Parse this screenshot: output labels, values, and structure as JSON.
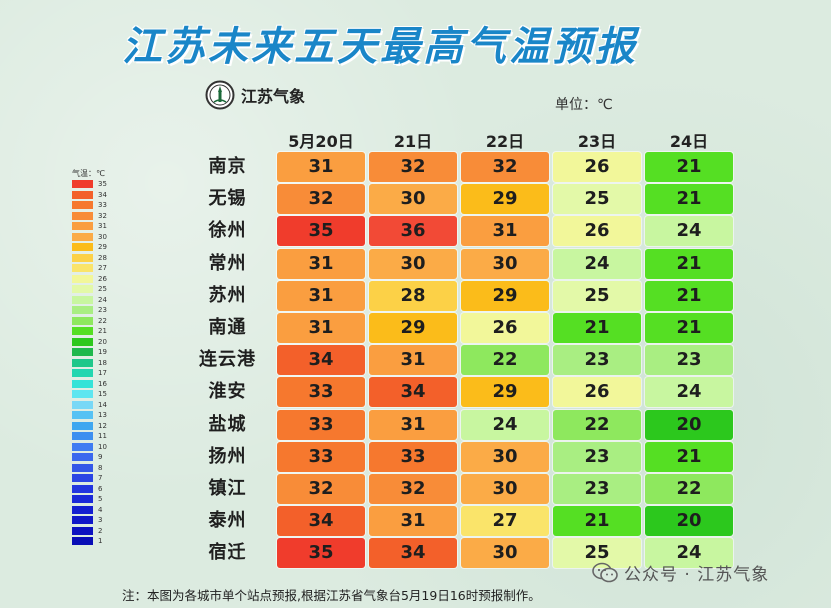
{
  "title": "江苏未来五天最高气温预报",
  "logo_text": "江苏气象",
  "unit_label": "单位：℃",
  "footnote": "注：本图为各城市单个站点预报,根据江苏省气象台5月19日16时预报制作。",
  "watermark": "公众号 · 江苏气象",
  "legend": {
    "title": "气温：℃",
    "items": [
      {
        "value": 35,
        "color": "#f03c2c"
      },
      {
        "value": 34,
        "color": "#f3602a"
      },
      {
        "value": 33,
        "color": "#f6782e"
      },
      {
        "value": 32,
        "color": "#f88c38"
      },
      {
        "value": 31,
        "color": "#fa9e40"
      },
      {
        "value": 30,
        "color": "#fbab47"
      },
      {
        "value": 29,
        "color": "#fbbc1a"
      },
      {
        "value": 28,
        "color": "#fcd147"
      },
      {
        "value": 27,
        "color": "#fae46a"
      },
      {
        "value": 26,
        "color": "#f2f79a"
      },
      {
        "value": 25,
        "color": "#e3f9a8"
      },
      {
        "value": 24,
        "color": "#c8f6a0"
      },
      {
        "value": 23,
        "color": "#a9ee82"
      },
      {
        "value": 22,
        "color": "#8ee85e"
      },
      {
        "value": 21,
        "color": "#55df23"
      },
      {
        "value": 20,
        "color": "#2cc81d"
      },
      {
        "value": 19,
        "color": "#1eb84c"
      },
      {
        "value": 18,
        "color": "#1ec78a"
      },
      {
        "value": 17,
        "color": "#22d6b0"
      },
      {
        "value": 16,
        "color": "#35e3d8"
      },
      {
        "value": 15,
        "color": "#5ee6f0"
      },
      {
        "value": 14,
        "color": "#78d8f6"
      },
      {
        "value": 13,
        "color": "#56c2f4"
      },
      {
        "value": 12,
        "color": "#3ea7f0"
      },
      {
        "value": 11,
        "color": "#3c8ff0"
      },
      {
        "value": 10,
        "color": "#3f7cf2"
      },
      {
        "value": 9,
        "color": "#3a68ee"
      },
      {
        "value": 8,
        "color": "#3357e8"
      },
      {
        "value": 7,
        "color": "#2a45e4"
      },
      {
        "value": 6,
        "color": "#2236df"
      },
      {
        "value": 5,
        "color": "#1a2ad8"
      },
      {
        "value": 4,
        "color": "#1420d0"
      },
      {
        "value": 3,
        "color": "#1018c8"
      },
      {
        "value": 2,
        "color": "#0c12c0"
      },
      {
        "value": 1,
        "color": "#080db6"
      }
    ]
  },
  "chart_data": {
    "type": "table",
    "columns": [
      "5月20日",
      "21日",
      "22日",
      "23日",
      "24日"
    ],
    "rows": [
      {
        "city": "南京",
        "values": [
          31,
          32,
          32,
          26,
          21
        ]
      },
      {
        "city": "无锡",
        "values": [
          32,
          30,
          29,
          25,
          21
        ]
      },
      {
        "city": "徐州",
        "values": [
          35,
          36,
          31,
          26,
          24
        ]
      },
      {
        "city": "常州",
        "values": [
          31,
          30,
          30,
          24,
          21
        ]
      },
      {
        "city": "苏州",
        "values": [
          31,
          28,
          29,
          25,
          21
        ]
      },
      {
        "city": "南通",
        "values": [
          31,
          29,
          26,
          21,
          21
        ]
      },
      {
        "city": "连云港",
        "values": [
          34,
          31,
          22,
          23,
          23
        ]
      },
      {
        "city": "淮安",
        "values": [
          33,
          34,
          29,
          26,
          24
        ]
      },
      {
        "city": "盐城",
        "values": [
          33,
          31,
          24,
          22,
          20
        ]
      },
      {
        "city": "扬州",
        "values": [
          33,
          33,
          30,
          23,
          21
        ]
      },
      {
        "city": "镇江",
        "values": [
          32,
          32,
          30,
          23,
          22
        ]
      },
      {
        "city": "泰州",
        "values": [
          34,
          31,
          27,
          21,
          20
        ]
      },
      {
        "city": "宿迁",
        "values": [
          35,
          34,
          30,
          25,
          24
        ]
      }
    ]
  }
}
